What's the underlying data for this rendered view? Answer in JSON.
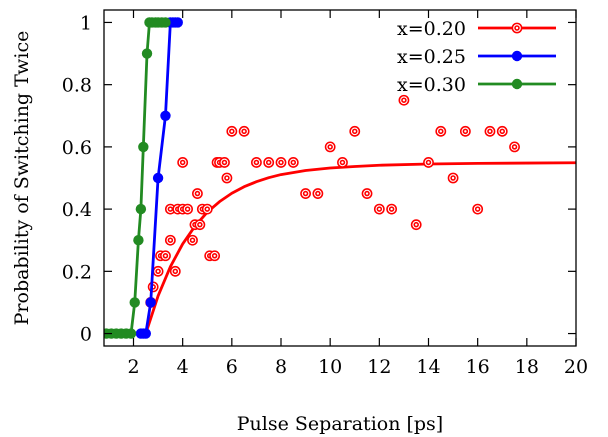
{
  "chart_data": {
    "type": "scatter",
    "title": "",
    "xlabel": "Pulse Separation [ps]",
    "ylabel": "Probability of Switching Twice",
    "xlim": [
      0.8,
      20
    ],
    "ylim": [
      -0.04,
      1.04
    ],
    "x_ticks": [
      2,
      4,
      6,
      8,
      10,
      12,
      14,
      16,
      18,
      20
    ],
    "x_tick_labels": [
      "2",
      "4",
      "6",
      "8",
      "10",
      "12",
      "14",
      "16",
      "18",
      "20"
    ],
    "y_ticks": [
      0,
      0.2,
      0.4,
      0.6,
      0.8,
      1
    ],
    "y_tick_labels": [
      "0",
      "0.2",
      "0.4",
      "0.6",
      "0.8",
      "1"
    ],
    "grid": false,
    "legend_position": "top-right",
    "series": [
      {
        "name": "x=0.20",
        "color": "#ff0000",
        "marker": "double-circle",
        "points": [
          [
            2.7,
            0.1
          ],
          [
            2.8,
            0.15
          ],
          [
            3.0,
            0.2
          ],
          [
            3.1,
            0.25
          ],
          [
            3.3,
            0.25
          ],
          [
            3.5,
            0.3
          ],
          [
            3.5,
            0.4
          ],
          [
            3.7,
            0.2
          ],
          [
            3.8,
            0.4
          ],
          [
            4.0,
            0.55
          ],
          [
            4.0,
            0.4
          ],
          [
            4.2,
            0.4
          ],
          [
            4.4,
            0.3
          ],
          [
            4.5,
            0.35
          ],
          [
            4.6,
            0.45
          ],
          [
            4.7,
            0.35
          ],
          [
            4.8,
            0.4
          ],
          [
            5.0,
            0.4
          ],
          [
            5.1,
            0.25
          ],
          [
            5.3,
            0.25
          ],
          [
            5.4,
            0.55
          ],
          [
            5.5,
            0.55
          ],
          [
            5.7,
            0.55
          ],
          [
            5.8,
            0.5
          ],
          [
            6.0,
            0.65
          ],
          [
            6.5,
            0.65
          ],
          [
            7.0,
            0.55
          ],
          [
            7.5,
            0.55
          ],
          [
            8.0,
            0.55
          ],
          [
            8.5,
            0.55
          ],
          [
            9.0,
            0.45
          ],
          [
            9.5,
            0.45
          ],
          [
            10.0,
            0.6
          ],
          [
            10.5,
            0.55
          ],
          [
            11.0,
            0.65
          ],
          [
            11.5,
            0.45
          ],
          [
            12.0,
            0.4
          ],
          [
            12.5,
            0.4
          ],
          [
            13.0,
            0.75
          ],
          [
            13.5,
            0.35
          ],
          [
            14.0,
            0.55
          ],
          [
            14.5,
            0.65
          ],
          [
            15.0,
            0.5
          ],
          [
            15.5,
            0.65
          ],
          [
            16.0,
            0.4
          ],
          [
            16.5,
            0.65
          ],
          [
            17.0,
            0.65
          ],
          [
            17.5,
            0.6
          ]
        ],
        "fit": {
          "x": [
            2.5,
            3,
            3.5,
            4,
            4.5,
            5,
            5.5,
            6,
            6.5,
            7,
            7.5,
            8,
            9,
            10,
            11,
            12,
            14,
            16,
            18,
            20
          ],
          "y": [
            0.0,
            0.121,
            0.215,
            0.288,
            0.345,
            0.39,
            0.424,
            0.451,
            0.472,
            0.488,
            0.501,
            0.511,
            0.524,
            0.532,
            0.537,
            0.541,
            0.545,
            0.547,
            0.548,
            0.549
          ]
        }
      },
      {
        "name": "x=0.25",
        "color": "#0000ff",
        "marker": "dot",
        "points": [
          [
            2.3,
            0.0
          ],
          [
            2.4,
            0.0
          ],
          [
            2.5,
            0.0
          ],
          [
            2.7,
            0.1
          ],
          [
            3.0,
            0.5
          ],
          [
            3.3,
            0.7
          ],
          [
            3.5,
            1.0
          ],
          [
            3.6,
            1.0
          ],
          [
            3.7,
            1.0
          ],
          [
            3.8,
            1.0
          ]
        ]
      },
      {
        "name": "x=0.30",
        "color": "#228b22",
        "marker": "dot",
        "points": [
          [
            0.9,
            0.0
          ],
          [
            1.1,
            0.0
          ],
          [
            1.3,
            0.0
          ],
          [
            1.5,
            0.0
          ],
          [
            1.7,
            0.0
          ],
          [
            1.9,
            0.0
          ],
          [
            2.05,
            0.1
          ],
          [
            2.2,
            0.3
          ],
          [
            2.3,
            0.4
          ],
          [
            2.4,
            0.6
          ],
          [
            2.55,
            0.9
          ],
          [
            2.65,
            1.0
          ],
          [
            2.75,
            1.0
          ],
          [
            2.9,
            1.0
          ],
          [
            3.0,
            1.0
          ],
          [
            3.15,
            1.0
          ],
          [
            3.3,
            1.0
          ]
        ]
      }
    ]
  }
}
